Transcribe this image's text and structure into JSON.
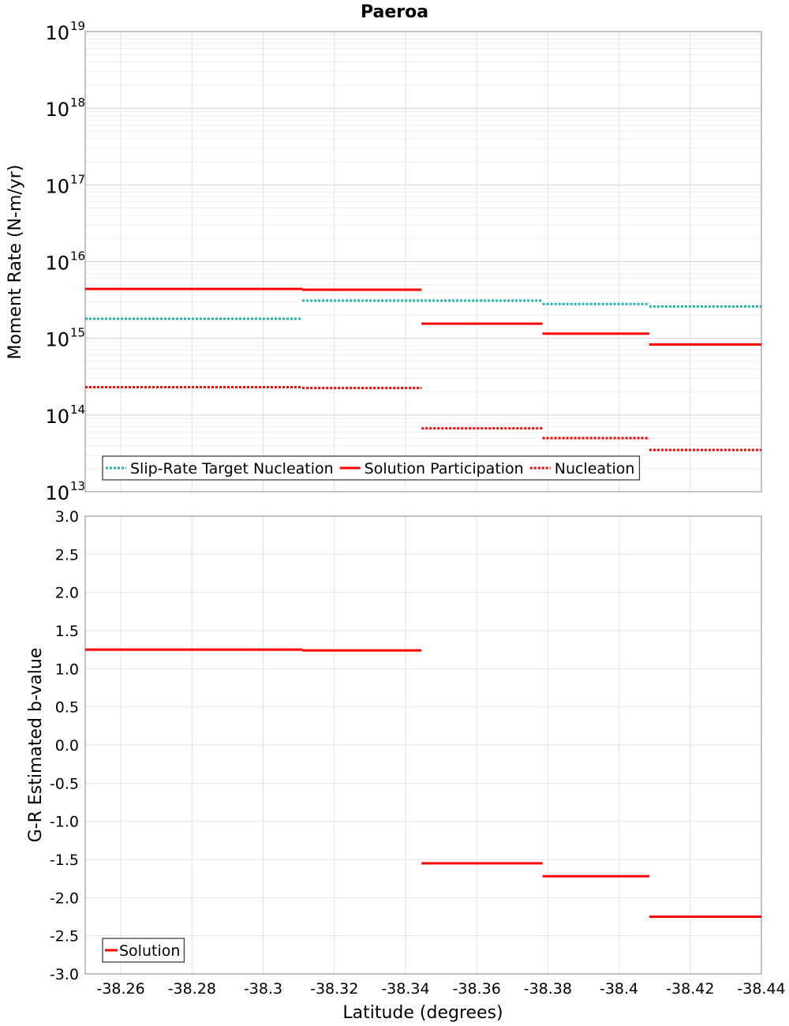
{
  "chart_data": [
    {
      "type": "line",
      "title": "Paeroa",
      "ylabel": "Moment Rate (N-m/yr)",
      "xlabel": "",
      "y_scale": "log",
      "ylim": [
        10000000000000.0,
        1e+19
      ],
      "xlim": [
        -38.25,
        -38.44
      ],
      "y_tick_labels": [
        {
          "base": "10",
          "exp": "13"
        },
        {
          "base": "10",
          "exp": "14"
        },
        {
          "base": "10",
          "exp": "15"
        },
        {
          "base": "10",
          "exp": "16"
        },
        {
          "base": "10",
          "exp": "17"
        },
        {
          "base": "10",
          "exp": "18"
        },
        {
          "base": "10",
          "exp": "19"
        }
      ],
      "grid": true,
      "legend": "bottom-left",
      "series": [
        {
          "name": "Slip-Rate Target Nucleation",
          "color": "#22b2b2",
          "style": "dotted",
          "segments": [
            {
              "x": [
                -38.25,
                -38.311
              ],
              "y": 1800000000000000.0
            },
            {
              "x": [
                -38.311,
                -38.3785
              ],
              "y": 3100000000000000.0
            },
            {
              "x": [
                -38.3785,
                -38.4085
              ],
              "y": 2800000000000000.0
            },
            {
              "x": [
                -38.4085,
                -38.44
              ],
              "y": 2600000000000000.0
            }
          ]
        },
        {
          "name": "Solution Participation",
          "color": "#ff0000",
          "style": "solid",
          "segments": [
            {
              "x": [
                -38.25,
                -38.311
              ],
              "y": 4400000000000000.0
            },
            {
              "x": [
                -38.311,
                -38.3445
              ],
              "y": 4300000000000000.0
            },
            {
              "x": [
                -38.3445,
                -38.3785
              ],
              "y": 1550000000000000.0
            },
            {
              "x": [
                -38.3785,
                -38.4085
              ],
              "y": 1150000000000000.0
            },
            {
              "x": [
                -38.4085,
                -38.44
              ],
              "y": 830000000000000.0
            }
          ]
        },
        {
          "name": "Nucleation",
          "color": "#ff0000",
          "style": "dotted",
          "segments": [
            {
              "x": [
                -38.25,
                -38.311
              ],
              "y": 230000000000000.0
            },
            {
              "x": [
                -38.311,
                -38.3445
              ],
              "y": 225000000000000.0
            },
            {
              "x": [
                -38.3445,
                -38.3785
              ],
              "y": 67000000000000.0
            },
            {
              "x": [
                -38.3785,
                -38.4085
              ],
              "y": 50000000000000.0
            },
            {
              "x": [
                -38.4085,
                -38.44
              ],
              "y": 35000000000000.0
            }
          ]
        }
      ]
    },
    {
      "type": "line",
      "title": "",
      "ylabel": "G-R Estimated b-value",
      "xlabel": "Latitude (degrees)",
      "ylim": [
        -3.0,
        3.0
      ],
      "xlim": [
        -38.25,
        -38.44
      ],
      "y_ticks": [
        "-3.0",
        "-2.5",
        "-2.0",
        "-1.5",
        "-1.0",
        "-0.5",
        "0.0",
        "0.5",
        "1.0",
        "1.5",
        "2.0",
        "2.5",
        "3.0"
      ],
      "x_ticks": [
        "-38.26",
        "-38.28",
        "-38.3",
        "-38.32",
        "-38.34",
        "-38.36",
        "-38.38",
        "-38.4",
        "-38.42",
        "-38.44"
      ],
      "x_tick_values": [
        -38.26,
        -38.28,
        -38.3,
        -38.32,
        -38.34,
        -38.36,
        -38.38,
        -38.4,
        -38.42,
        -38.44
      ],
      "grid": true,
      "legend": "bottom-left",
      "series": [
        {
          "name": "Solution",
          "color": "#ff0000",
          "style": "solid",
          "segments": [
            {
              "x": [
                -38.25,
                -38.311
              ],
              "y": 1.25
            },
            {
              "x": [
                -38.311,
                -38.3445
              ],
              "y": 1.24
            },
            {
              "x": [
                -38.3445,
                -38.3785
              ],
              "y": -1.55
            },
            {
              "x": [
                -38.3785,
                -38.4085
              ],
              "y": -1.72
            },
            {
              "x": [
                -38.4085,
                -38.44
              ],
              "y": -2.25
            }
          ]
        }
      ]
    }
  ]
}
